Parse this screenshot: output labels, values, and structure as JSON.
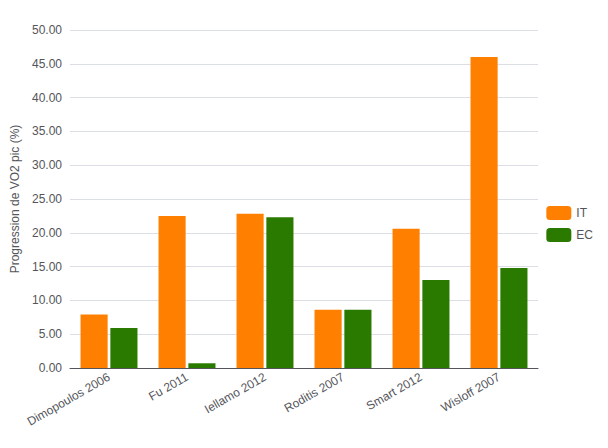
{
  "chart_data": {
    "type": "bar",
    "categories": [
      "Dimopoulos 2006",
      "Fu 2011",
      "Iellamo 2012",
      "Roditis 2007",
      "Smart 2012",
      "Wisloff 2007"
    ],
    "series": [
      {
        "name": "IT",
        "color": "#FF8000",
        "values": [
          7.9,
          22.5,
          22.8,
          8.6,
          20.6,
          46.0
        ]
      },
      {
        "name": "EC",
        "color": "#2A7A00",
        "values": [
          5.9,
          0.7,
          22.3,
          8.6,
          13.0,
          14.8
        ]
      }
    ],
    "ylabel": "Progression de VO2 pic (%)",
    "ylim": [
      0,
      50
    ],
    "yticks": [
      {
        "value": 0,
        "label": "0.00"
      },
      {
        "value": 5,
        "label": "5.00"
      },
      {
        "value": 10,
        "label": "10.00"
      },
      {
        "value": 15,
        "label": "15.00"
      },
      {
        "value": 20,
        "label": "20.00"
      },
      {
        "value": 25,
        "label": "25.00"
      },
      {
        "value": 30,
        "label": "30.00"
      },
      {
        "value": 35,
        "label": "35.00"
      },
      {
        "value": 40,
        "label": "40.00"
      },
      {
        "value": 45,
        "label": "45.00"
      },
      {
        "value": 50,
        "label": "50.00"
      }
    ],
    "grid": true,
    "legend": "right"
  }
}
